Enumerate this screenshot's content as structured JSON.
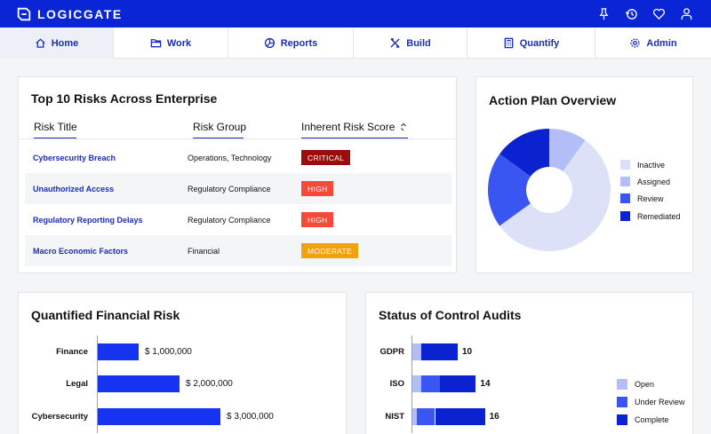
{
  "app": {
    "logo_text": "LOGICGATE"
  },
  "topbar_icons": [
    "pin-icon",
    "history-icon",
    "heart-icon",
    "user-icon"
  ],
  "nav": [
    {
      "label": "Home",
      "icon": "home-icon",
      "active": true
    },
    {
      "label": "Work",
      "icon": "folder-icon",
      "active": false
    },
    {
      "label": "Reports",
      "icon": "pie-chart-icon",
      "active": false
    },
    {
      "label": "Build",
      "icon": "tools-icon",
      "active": false
    },
    {
      "label": "Quantify",
      "icon": "calculator-icon",
      "active": false
    },
    {
      "label": "Admin",
      "icon": "gear-icon",
      "active": false
    }
  ],
  "risks": {
    "title": "Top 10 Risks Across Enterprise",
    "columns": [
      "Risk Title",
      "Risk Group",
      "Inherent Risk Score"
    ],
    "rows": [
      {
        "title": "Cybersecurity Breach",
        "group": "Operations, Technology",
        "score": "CRITICAL",
        "color": "#9b0d0d"
      },
      {
        "title": "Unauthorized Access",
        "group": "Regulatory Compliance",
        "score": "HIGH",
        "color": "#f54a3a"
      },
      {
        "title": "Regulatory Reporting Delays",
        "group": "Regulatory Compliance",
        "score": "HIGH",
        "color": "#f54a3a"
      },
      {
        "title": "Macro Economic Factors",
        "group": "Financial",
        "score": "MODERATE",
        "color": "#f5a00f"
      }
    ]
  },
  "action_plan": {
    "title": "Action Plan Overview",
    "legend": [
      {
        "label": "Inactive",
        "color": "#dde1f8"
      },
      {
        "label": "Assigned",
        "color": "#b3bdf7"
      },
      {
        "label": "Review",
        "color": "#3a56f2"
      },
      {
        "label": "Remediated",
        "color": "#0a22d0"
      }
    ]
  },
  "financial": {
    "title": "Quantified Financial Risk"
  },
  "audits": {
    "title": "Status of Control Audits",
    "legend": [
      {
        "label": "Open",
        "color": "#b3bdf7"
      },
      {
        "label": "Under Review",
        "color": "#3a56f2"
      },
      {
        "label": "Complete",
        "color": "#0a22d0"
      }
    ]
  },
  "chart_data": [
    {
      "type": "pie",
      "title": "Action Plan Overview",
      "categories": [
        "Inactive",
        "Assigned",
        "Review",
        "Remediated"
      ],
      "values": [
        55,
        10,
        20,
        15
      ]
    },
    {
      "type": "bar",
      "title": "Quantified Financial Risk",
      "orientation": "horizontal",
      "categories": [
        "Finance",
        "Legal",
        "Cybersecurity"
      ],
      "values": [
        1000000,
        2000000,
        3000000
      ],
      "value_labels": [
        "$ 1,000,000",
        "$ 2,000,000",
        "$ 3,000,000"
      ]
    },
    {
      "type": "bar",
      "title": "Status of Control Audits",
      "orientation": "horizontal",
      "stacked": true,
      "categories": [
        "GDPR",
        "ISO",
        "NIST"
      ],
      "series": [
        {
          "name": "Open",
          "values": [
            2,
            2,
            1
          ]
        },
        {
          "name": "Under Review",
          "values": [
            0,
            4,
            4
          ]
        },
        {
          "name": "Complete",
          "values": [
            8,
            8,
            11
          ]
        }
      ],
      "totals": [
        10,
        14,
        16
      ]
    }
  ]
}
